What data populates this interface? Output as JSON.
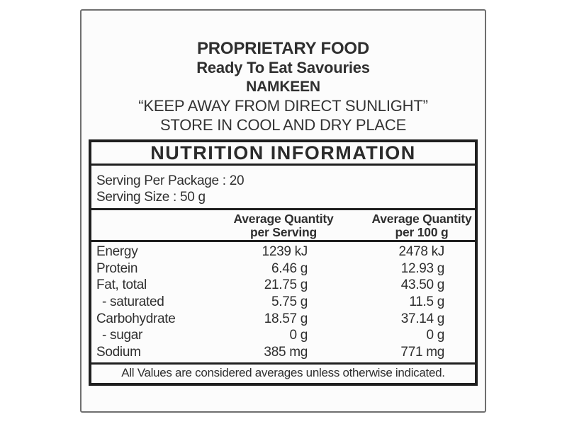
{
  "header": {
    "product_type": "PROPRIETARY FOOD",
    "product_category": "Ready To Eat Savouries",
    "product_name": "NAMKEEN",
    "storage_warning": "“KEEP AWAY FROM DIRECT SUNLIGHT”",
    "storage_instruction": "STORE IN COOL AND DRY PLACE"
  },
  "nutrition_table": {
    "title": "NUTRITION INFORMATION",
    "serving_per_package": "Serving Per Package : 20",
    "serving_size": "Serving Size : 50 g",
    "col_per_serving": {
      "line1": "Average Quantity",
      "line2": "per Serving"
    },
    "col_per_100g": {
      "line1": "Average Quantity",
      "line2": "per 100 g"
    },
    "rows": [
      {
        "label": "Energy",
        "per_serving": "1239 kJ",
        "per_100g": "2478 kJ"
      },
      {
        "label": "Protein",
        "per_serving": "6.46 g",
        "per_100g": "12.93 g"
      },
      {
        "label": "Fat, total",
        "per_serving": "21.75 g",
        "per_100g": "43.50 g"
      },
      {
        "label": "- saturated",
        "per_serving": "5.75 g",
        "per_100g": "11.5 g"
      },
      {
        "label": "Carbohydrate",
        "per_serving": "18.57 g",
        "per_100g": "37.14 g"
      },
      {
        "label": "- sugar",
        "per_serving": "0 g",
        "per_100g": "0 g"
      },
      {
        "label": "Sodium",
        "per_serving": "385 mg",
        "per_100g": "771 mg"
      }
    ],
    "footnote": "All Values are considered averages unless otherwise indicated."
  },
  "colors": {
    "frame_border": "#6f6f6f",
    "table_border": "#1f1f1f",
    "text": "#2f2f2f",
    "background": "#fcfcfc"
  }
}
